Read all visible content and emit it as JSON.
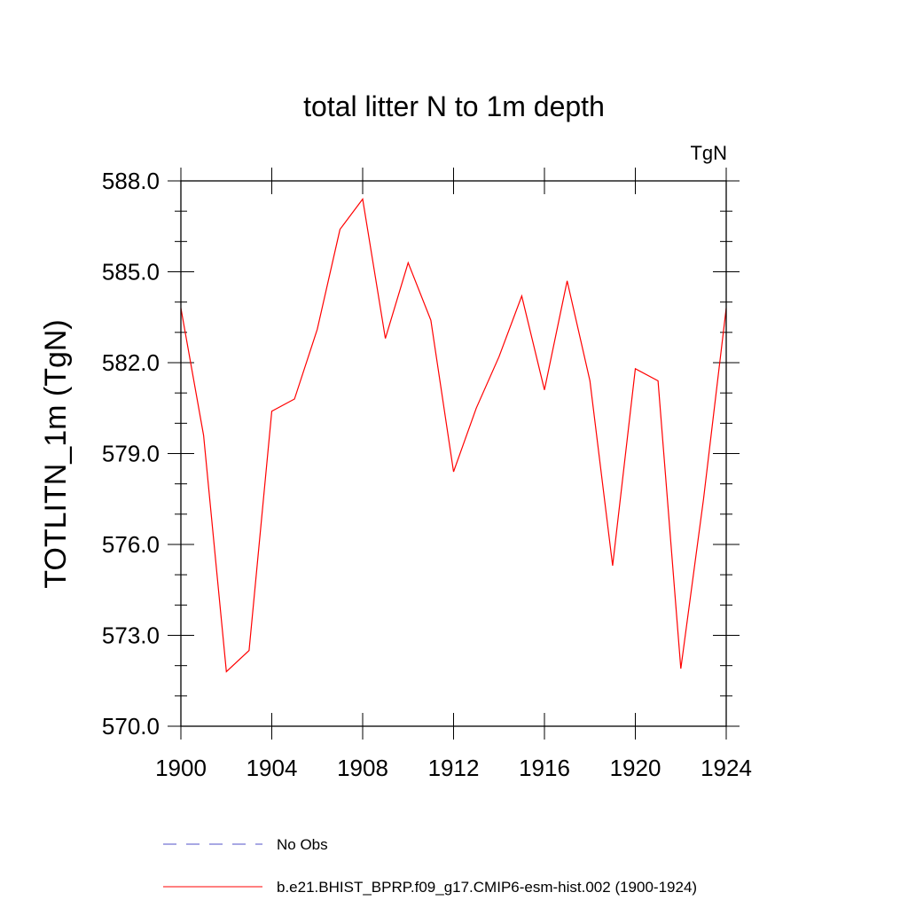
{
  "chart_data": {
    "type": "line",
    "title": "total litter N to 1m depth",
    "units": "TgN",
    "xlabel": "",
    "ylabel": "TOTLITN_1m  (TgN)",
    "xlim": [
      1900,
      1924
    ],
    "ylim": [
      570.0,
      588.0
    ],
    "x_ticks": [
      1900,
      1904,
      1908,
      1912,
      1916,
      1920,
      1924
    ],
    "x_tick_labels": [
      "1900",
      "1904",
      "1908",
      "1912",
      "1916",
      "1920",
      "1924"
    ],
    "y_ticks": [
      570,
      573,
      576,
      579,
      582,
      585,
      588
    ],
    "y_tick_labels": [
      "570.0",
      "573.0",
      "576.0",
      "579.0",
      "582.0",
      "585.0",
      "588.0"
    ],
    "series": [
      {
        "name": "b.e21.BHIST_BPRP.f09_g17.CMIP6-esm-hist.002 (1900-1924)",
        "color": "#ff0000",
        "style": "solid",
        "x": [
          1900,
          1901,
          1902,
          1903,
          1904,
          1905,
          1906,
          1907,
          1908,
          1909,
          1910,
          1911,
          1912,
          1913,
          1914,
          1915,
          1916,
          1917,
          1918,
          1919,
          1920,
          1921,
          1922,
          1923,
          1924
        ],
        "values": [
          583.8,
          579.6,
          571.8,
          572.5,
          580.4,
          580.8,
          583.1,
          586.4,
          587.4,
          582.8,
          585.3,
          583.4,
          578.4,
          580.5,
          582.2,
          584.2,
          581.1,
          584.7,
          581.4,
          575.3,
          581.8,
          581.4,
          571.9,
          577.5,
          583.8
        ]
      }
    ],
    "legend": [
      {
        "label": "No Obs",
        "color": "#5050c8",
        "style": "dashed"
      },
      {
        "label": "b.e21.BHIST_BPRP.f09_g17.CMIP6-esm-hist.002 (1900-1924)",
        "color": "#ff0000",
        "style": "solid"
      }
    ],
    "grid": false
  }
}
